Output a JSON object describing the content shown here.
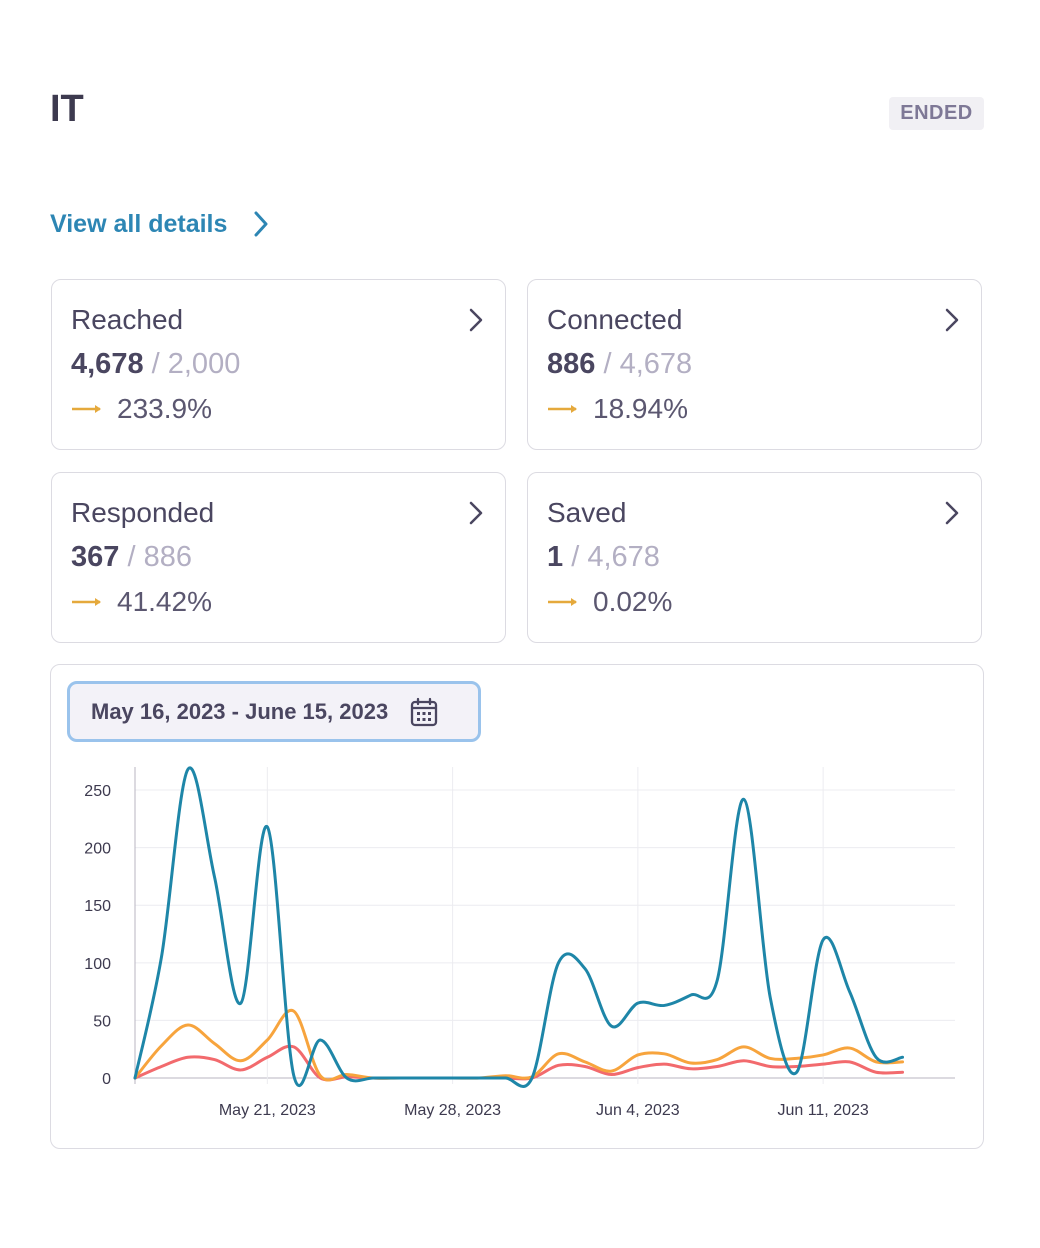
{
  "header": {
    "title": "IT",
    "status_badge": "ENDED"
  },
  "details_link": {
    "label": "View all details"
  },
  "cards": [
    {
      "label": "Reached",
      "value": "4,678",
      "total": "2,000",
      "percent": "233.9%"
    },
    {
      "label": "Connected",
      "value": "886",
      "total": "4,678",
      "percent": "18.94%"
    },
    {
      "label": "Responded",
      "value": "367",
      "total": "886",
      "percent": "41.42%"
    },
    {
      "label": "Saved",
      "value": "1",
      "total": "4,678",
      "percent": "0.02%"
    }
  ],
  "colors": {
    "accent_link": "#2d86b4",
    "trend_arrow": "#e5a93c",
    "reached": "#1e86a8",
    "connected": "#f7a43d",
    "responded": "#f26a6d"
  },
  "icons": {
    "link_chevron": "chevron-right-icon",
    "card_chevron": "chevron-right-icon",
    "trend": "arrow-right-icon",
    "calendar": "calendar-icon"
  },
  "chart_filter": {
    "date_range": "May 16, 2023 - June 15, 2023"
  },
  "chart_data": {
    "type": "line",
    "x": [
      "2023-05-16",
      "2023-05-17",
      "2023-05-18",
      "2023-05-19",
      "2023-05-20",
      "2023-05-21",
      "2023-05-22",
      "2023-05-23",
      "2023-05-24",
      "2023-05-25",
      "2023-05-26",
      "2023-05-27",
      "2023-05-28",
      "2023-05-29",
      "2023-05-30",
      "2023-05-31",
      "2023-06-01",
      "2023-06-02",
      "2023-06-03",
      "2023-06-04",
      "2023-06-05",
      "2023-06-06",
      "2023-06-07",
      "2023-06-08",
      "2023-06-09",
      "2023-06-10",
      "2023-06-11",
      "2023-06-12",
      "2023-06-13",
      "2023-06-14",
      "2023-06-15"
    ],
    "series": [
      {
        "color": "#1e86a8",
        "values": [
          0,
          105,
          268,
          175,
          65,
          218,
          2,
          33,
          0,
          0,
          0,
          0,
          0,
          0,
          0,
          0,
          100,
          95,
          45,
          65,
          63,
          72,
          85,
          242,
          70,
          5,
          120,
          75,
          18,
          18,
          18
        ]
      },
      {
        "color": "#f7a43d",
        "values": [
          0,
          28,
          46,
          30,
          15,
          33,
          58,
          2,
          3,
          0,
          0,
          0,
          0,
          0,
          2,
          1,
          21,
          14,
          6,
          20,
          21,
          13,
          16,
          27,
          17,
          17,
          20,
          26,
          14,
          14,
          14
        ]
      },
      {
        "color": "#f26a6d",
        "values": [
          0,
          10,
          18,
          16,
          7,
          18,
          27,
          0,
          1,
          0,
          0,
          0,
          0,
          0,
          0,
          0,
          11,
          10,
          3,
          9,
          12,
          8,
          10,
          15,
          10,
          10,
          12,
          14,
          5,
          5,
          5
        ]
      }
    ],
    "x_ticks": [
      "May 21, 2023",
      "May 28, 2023",
      "Jun 4, 2023",
      "Jun 11, 2023"
    ],
    "y_ticks": [
      0,
      50,
      100,
      150,
      200,
      250
    ],
    "ylim": [
      0,
      270
    ],
    "grid": true
  }
}
